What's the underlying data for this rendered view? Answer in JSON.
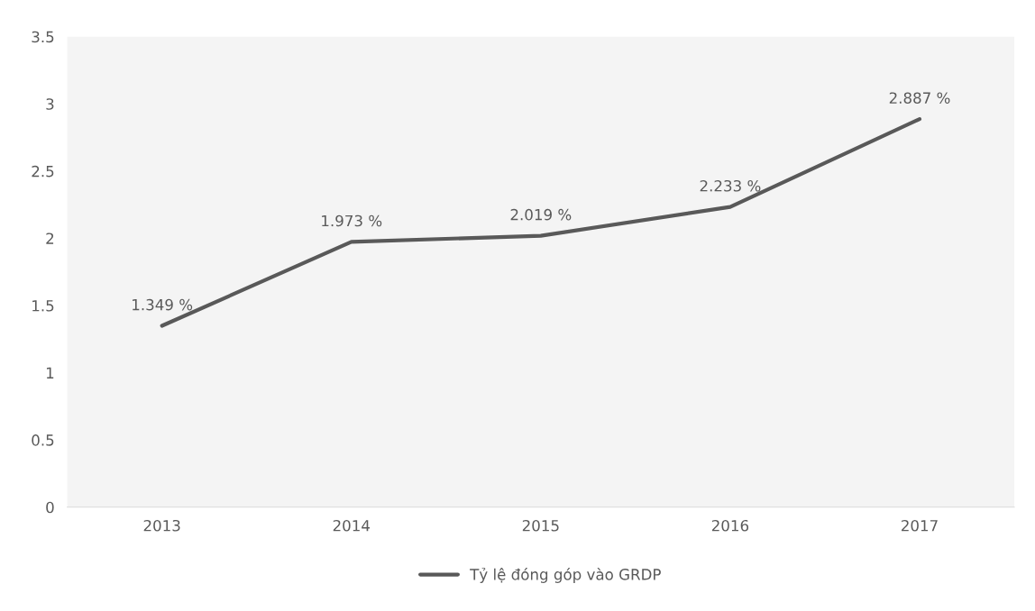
{
  "chart_data": {
    "type": "line",
    "categories": [
      "2013",
      "2014",
      "2015",
      "2016",
      "2017"
    ],
    "series": [
      {
        "name": "Tỷ lệ đóng góp vào GRDP",
        "color": "#595959",
        "values": [
          1.349,
          1.973,
          2.019,
          2.233,
          2.887
        ],
        "value_labels": [
          "1.349 %",
          "1.973 %",
          "2.019 %",
          "2.233 %",
          "2.887 %"
        ]
      }
    ],
    "ylim": [
      0,
      3.5
    ],
    "yticks": [
      0,
      0.5,
      1,
      1.5,
      2,
      2.5,
      3,
      3.5
    ],
    "grid": false,
    "legend": "bottom",
    "marker": "none",
    "line_style": "solid"
  }
}
